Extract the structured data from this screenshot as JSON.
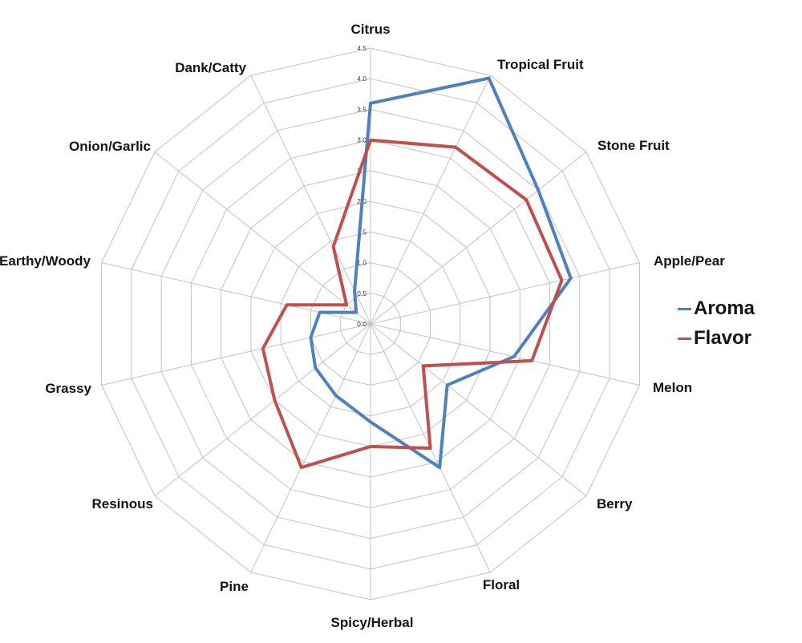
{
  "chart_data": {
    "type": "radar",
    "title": "",
    "categories": [
      "Citrus",
      "Tropical Fruit",
      "Stone Fruit",
      "Apple/Pear",
      "Melon",
      "Berry",
      "Floral",
      "Spicy/Herbal",
      "Pine",
      "Resinous",
      "Grassy",
      "Earthy/Woody",
      "Onion/Garlic",
      "Dank/Catty"
    ],
    "series": [
      {
        "name": "Aroma",
        "color": "#4F81BD",
        "values": [
          3.6,
          4.45,
          3.5,
          3.35,
          2.4,
          1.6,
          2.6,
          1.6,
          1.3,
          1.15,
          1.0,
          0.85,
          0.3,
          0.6
        ]
      },
      {
        "name": "Flavor",
        "color": "#C0504D",
        "values": [
          3.0,
          3.2,
          3.25,
          3.2,
          2.7,
          1.1,
          2.25,
          2.0,
          2.6,
          2.0,
          1.8,
          1.4,
          0.5,
          1.4
        ]
      }
    ],
    "radial_axis": {
      "min": 0,
      "max": 4.5,
      "step": 0.5,
      "tick_labels": [
        "0.0",
        "0.5",
        "1.0",
        "1.5",
        "2.0",
        "2.5",
        "3.0",
        "3.5",
        "4.0",
        "4.5"
      ]
    },
    "grid": true,
    "legend_position": "right"
  },
  "colors": {
    "background": "#ffffff",
    "grid": "#c3c3c3",
    "aroma_line": "#4F81BD",
    "flavor_line": "#C0504D",
    "label_text": "#141414"
  }
}
